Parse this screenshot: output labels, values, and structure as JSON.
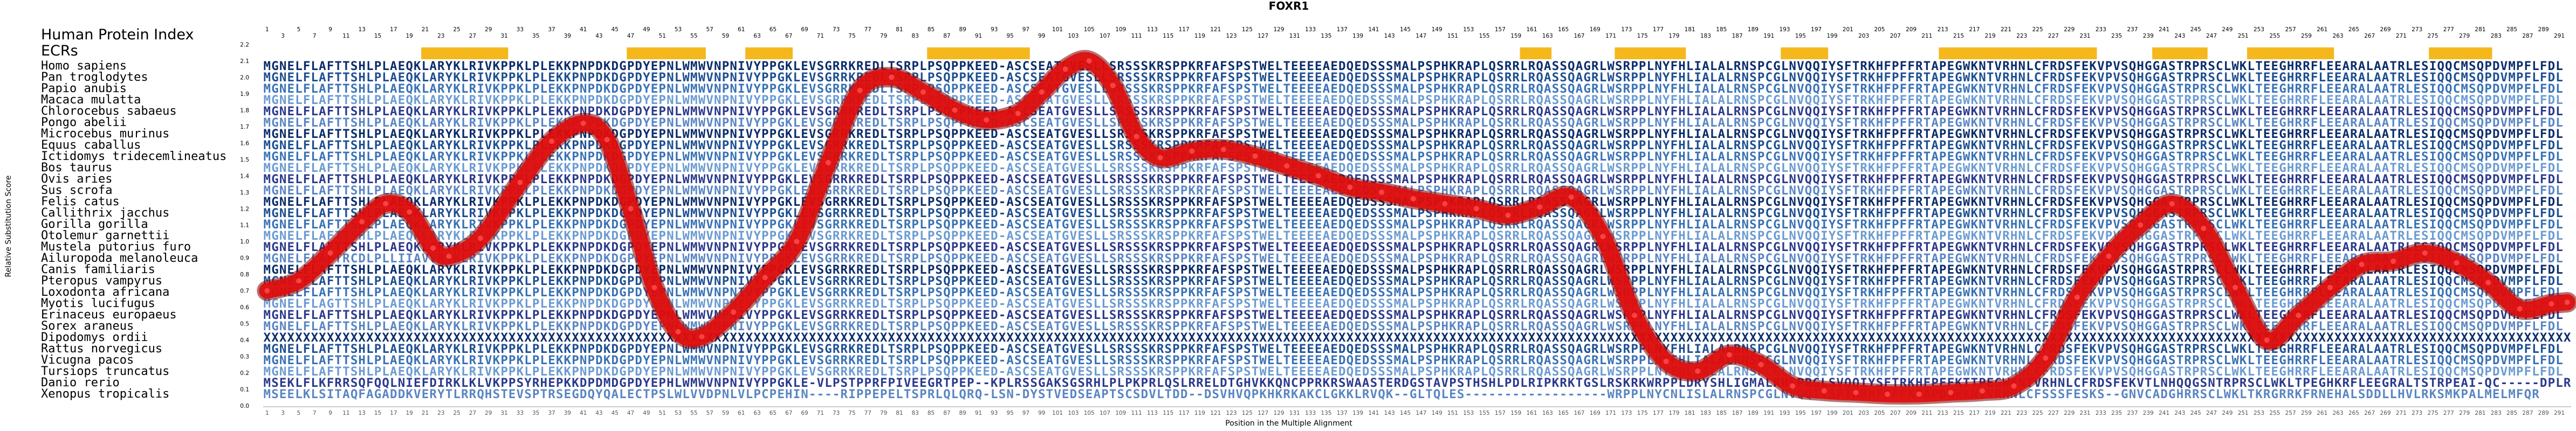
{
  "chart_data": {
    "type": "line",
    "title": "FOXR1",
    "xlabel": "Position in the Multiple Alignment",
    "ylabel": "Relative Substitution Score",
    "yticks": [
      "0.0",
      "0.1",
      "0.2",
      "0.3",
      "0.4",
      "0.5",
      "0.6",
      "0.7",
      "0.8",
      "0.9",
      "1.0",
      "1.1",
      "1.2",
      "1.3",
      "1.4",
      "1.5",
      "1.6",
      "1.7",
      "1.8",
      "1.9",
      "2.0",
      "2.1",
      "2.2"
    ],
    "xlim": [
      1,
      292
    ],
    "ylim": [
      0,
      2.3
    ],
    "grid": false,
    "header_rows": [
      "Human Protein Index",
      "ECRs"
    ],
    "ecr_ranges": [
      [
        21,
        31
      ],
      [
        47,
        56
      ],
      [
        62,
        67
      ],
      [
        85,
        97
      ],
      [
        160,
        163
      ],
      [
        172,
        180
      ],
      [
        193,
        198
      ],
      [
        213,
        232
      ],
      [
        240,
        246
      ],
      [
        252,
        262
      ],
      [
        275,
        282
      ]
    ],
    "index_positions_start": 1,
    "index_positions_end": 292,
    "index_positions_step": 2,
    "species": [
      "Homo sapiens",
      "Pan troglodytes",
      "Papio anubis",
      "Macaca mulatta",
      "Chlorocebus sabaeus",
      "Pongo abelii",
      "Microcebus murinus",
      "Equus caballus",
      "Ictidomys tridecemlineatus",
      "Bos taurus",
      "Ovis aries",
      "Sus scrofa",
      "Felis catus",
      "Callithrix jacchus",
      "Gorilla gorilla",
      "Otolemur garnettii",
      "Mustela putorius furo",
      "Ailuropoda melanoleuca",
      "Canis familiaris",
      "Pteropus vampyrus",
      "Loxodonta africana",
      "Myotis lucifugus",
      "Erinaceus europaeus",
      "Sorex araneus",
      "Dipodomys ordii",
      "Rattus norvegicus",
      "Vicugna pacos",
      "Tursiops truncatus",
      "Danio rerio",
      "Xenopus tropicalis"
    ],
    "sequences": [
      "MGNELFLAFTTSHLPLAEQKLARYKLRIVKPPKLPLEKKPNPDKDGPDYEPNLWMWVNPNIVYPPGKLEVSGRRKREDLTSRPLPSQPPKEED-ASCSEATGVESLLSRSSSKRSPPKRFAFSPSTWELTEEEEAEDQEDSSSMALPSPHKRAPLQSRRLRQASSQAGRLWSRPPLNYFHLIALALRNSPCGLNVQQIYSFTRKHFPFFRTAPEGWKNTVRHNLCFRDSFEKVPVSQHGGASTRPRSCLWKLTEEGHRRFLEEARALAATRLESIQQCMSQPDVMPFLFDL",
      "MGNELFLAFTTSHLPLAEQKLARYKLRIVKPPKLPLEKKPNPDKDGPDYEPNLWMWVNPNIVYPPGKLEVSGRRKREDLTSRPLPSQPPKEED-ASCSEATGVESLLSRSSSKRSPPKRFAFSPSTWELTEEEEAEDQEDSSSMALPSPHKRAPLQSRRLRQASSQAGRLWSRPPLNYFHLIALALRNSPCGLNVQQIYSFTRKHFPFFRTAPEGWKNTVRHNLCFRDSFEKVPVSQHGGASTRPRSCLWKLTEEGHRRFLEEARALAATRLESIQQCMSQPDVMPFLFDL",
      "MGNELFLAFTTSHLPLAEQKLARYKLRIVKPPKLPLEKKPNPDKDGPDYEPNLWMWVNPNIVYPPGKLEVSGRRKREDLTSRPLPSQPPKEED-ASCSEATGVESLLSRSSSKRSPPKRFAFSPSTWELTEEEEAEDQEDSSSMALPSPHKRAPLQSRRLRQASSQAGRLWSRPPLNYFHLIALALRNSPCGLNVQQIYSFTRKHFPFFRTAPEGWKNTVRHNLCFRDSFEKVPVSQHGGASTRPRSCLWKLTEEGHRRFLEEARALAATRLESIQQCMSQPDVMPFLFDL",
      "MGNELFLAFTTSHLPLAEQKLARYKLRIVKPPKLPLEKKPNPDKDGPDYEPNLWMWVNPNIVYPPGKLEVSGRRKREDLTSRPLPSQPPKEED-ASCSEATGVESLLSRSSSKRSPPKRFAFSPSTWELTEEEEAEDQEDSSSMALPSPHKRAPLQSRRLRQASSQAGRLWSRPPLNYFHLIALALRNSPCGLNVQQIYSFTRKHFPFFRTAPEGWKNTVRHNLCFRDSFEKVPVSQHGGASTRPRSCLWKLTEEGHRRFLEEARALAATRLESIQQCMSQPDVMPFLFDL",
      "MGNELFLAFTTSHLPLAEQKLARYKLRIVKPPKLPLEKKPNPDKDGPDYEPNLWMWVNPNIVYPPGKLEVSGRRKREDLTSRPLPSQPPKEED-ASCSEATGVESLLSRSSSKRSPPKRFAFSPSTWELTEEEEAEDQEDSSSMALPSPHKRAPLQSRRLRQASSQAGRLWSRPPLNYFHLIALALRNSPCGLNVQQIYSFTRKHFPFFRTAPEGWKNTVRHNLCFRDSFEKVPVSQHGGASTRPRSCLWKLTEEGHRRFLEEARALAATRLESIQQCMSQPDVMPFLFDL",
      "MGNELFLAFTTSHLPLAEQKLARYKLRIVKPPKLPLEKKPNPDKDGPDYEPNLWMWVNPNIVYPPGKLEVSGRRKREDLTSRPLPSQPPKEED-ASCSEATGVESLLSRSSSKRSPPKRFAFSPSTWELTEEEEAEDQEDSSSMALPSPHKRAPLQSRRLRQASSQAGRLWSRPPLNYFHLIALALRNSPCGLNVQQIYSFTRKHFPFFRTAPEGWKNTVRHNLCFRDSFEKVPVSQHGGASTRPRSCLWKLTEEGHRRFLEEARALAATRLESIQQCMSQPDVMPFLFDL",
      "MGNELFLAFTTSHLPLAEQKLARYKLRIVKPPKLPLEKKPNPDKDGPDYEPNLWMWVNPNIVYPPGKLEVSGRRKREDLTSRPLPSQPPKEED-ASCSEATGVESLLSRSSSKRSPPKRFAFSPSTWELTEEEEAEDQEDSSSMALPSPHKRAPLQSRRLRQASSQAGRLWSRPPLNYFHLIALALRNSPCGLNVQQIYSFTRKHFPFFRTAPEGWKNTVRHNLCFRDSFEKVPVSQHGGASTRPRSCLWKLTEEGHRRFLEEARALAATRLESIQQCMSQPDVMPFLFDL",
      "MGNELFLAFTTSHLPLAEQKLARYKLRIVKPPKLPLEKKPNPDKDGPDYEPNLWMWVNPNIVYPPGKLEVSGRRKREDLTSRPLPSQPPKEED-ASCSEATGVESLLSRSSSKRSPPKRFAFSPSTWELTEEEEAEDQEDSSSMALPSPHKRAPLQSRRLRQASSQAGRLWSRPPLNYFHLIALALRNSPCGLNVQQIYSFTRKHFPFFRTAPEGWKNTVRHNLCFRDSFEKVPVSQHGGASTRPRSCLWKLTEEGHRRFLEEARALAATRLESIQQCMSQPDVMPFLFDL",
      "MGNELFLAFTTSHLPLAEQKLARYKLRIVKPPKLPLEKKPNPDKDGPDYEPNLWMWVNPNIVYPPGKLEVSGRRKREDLTSRPLPSQPPKEED-ASCSEATGVESLLSRSSSKRSPPKRFAFSPSTWELTEEEEAEDQEDSSSMALPSPHKRAPLQSRRLRQASSQAGRLWSRPPLNYFHLIALALRNSPCGLNVQQIYSFTRKHFPFFRTAPEGWKNTVRHNLCFRDSFEKVPVSQHGGASTRPRSCLWKLTEEGHRRFLEEARALAATRLESIQQCMSQPDVMPFLFDL",
      "MGNELFLAFTTSHLPLAEQKLARYKLRIVKPPKLPLEKKPNPDKDGPDYEPNLWMWVNPNIVYPPGKLEVSGRRKREDLTSRPLPSQPPKEED-ASCSEATGVESLLSRSSSKRSPPKRFAFSPSTWELTEEEEAEDQEDSSSMALPSPHKRAPLQSRRLRQASSQAGRLWSRPPLNYFHLIALALRNSPCGLNVQQIYSFTRKHFPFFRTAPEGWKNTVRHNLCFRDSFEKVPVSQHGGASTRPRSCLWKLTEEGHRRFLEEARALAATRLESIQQCMSQPDVMPFLFDL",
      "MGNELFLAFTTSHLPLAEQKLARYKLRIVKPPKLPLEKKPNPDKDGPDYEPNLWMWVNPNIVYPPGKLEVSGRRKREDLTSRPLPSQPPKEED-ASCSEATGVESLLSRSSSKRSPPKRFAFSPSTWELTEEEEAEDQEDSSSMALPSPHKRAPLQSRRLRQASSQAGRLWSRPPLNYFHLIALALRNSPCGLNVQQIYSFTRKHFPFFRTAPEGWKNTVRHNLCFRDSFEKVPVSQHGGASTRPRSCLWKLTEEGHRRFLEEARALAATRLESIQQCMSQPDVMPFLFDL",
      "MGNELFLAFTTSHLPLAEQKLARYKLRIVKPPKLPLEKKPNPDKDGPDYEPNLWMWVNPNIVYPPGKLEVSGRRKREDLTSRPLPSQPPKEED-ASCSEATGVESLLSRSSSKRSPPKRFAFSPSTWELTEEEEAEDQEDSSSMALPSPHKRAPLQSRRLRQASSQAGRLWSRPPLNYFHLIALALRNSPCGLNVQQIYSFTRKHFPFFRTAPEGWKNTVRHNLCFRDSFEKVPVSQHGGASTRPRSCLWKLTEEGHRRFLEEARALAATRLESIQQCMSQPDVMPFLFDL",
      "MGNELFLAFTTSHLPLAEQKLARYKLRIVKPPKLPLEKKPNPDKDGPDYEPNLWMWVNPNIVYPPGKLEVSGRRKREDLTSRPLPSQPPKEED-ASCSEATGVESLLSRSSSKRSPPKRFAFSPSTWELTEEEEAEDQEDSSSMALPSPHKRAPLQSRRLRQASSQAGRLWSRPPLNYFHLIALALRNSPCGLNVQQIYSFTRKHFPFFRTAPEGWKNTVRHNLCFRDSFEKVPVSQHGGASTRPRSCLWKLTEEGHRRFLEEARALAATRLESIQQCMSQPDVMPFLFDL",
      "MGNELFLAFTTSHLPLAEQKLARYKLRIVKPPKLPLEKKPNPDKDGPDYEPNLWMWVNPNIVYPPGKLEVSGRRKREDLTSRPLPSQPPKEED-ASCSEATGVESLLSRSSSKRSPPKRFAFSPSTWELTEEEEAEDQEDSSSMALPSPHKRAPLQSRRLRQASSQAGRLWSRPPLNYFHLIALALRNSPCGLNVQQIYSFTRKHFPFFRTAPEGWKNTVRHNLCFRDSFEKVPVSQHGGASTRPRSCLWKLTEEGHRRFLEEARALAATRLESIQQCMSQPDVMPFLFDL",
      "MGNELFLAFTTSHLPLAEQKLARYKLRIVKPPKLPLEKKPNPDKDGPDYEPNLWMWVNPNIVYPPGKLEVSGRRKREDLTSRPLPSQPPKEED-ASCSEATGVESLLSRSSSKRSPPKRFAFSPSTWELTEEEEAEDQEDSSSMALPSPHKRAPLQSRRLRQASSQAGRLWSRPPLNYFHLIALALRNSPCGLNVQQIYSFTRKHFPFFRTAPEGWKNTVRHNLCFRDSFEKVPVSQHGGASTRPRSCLWKLTEEGHRRFLEEARALAATRLESIQQCMSQPDVMPFLFDL",
      "MGNELFLAFTTSHLPLAEQKLARYKLRIVKPPKLPLEKKPNPDKDGPDYEPNLWMWVNPNIVYPPGKLEVSGRRKREDLTSRPLPSQPPKEED-ASCSEATGVESLLSRSSSKRSPPKRFAFSPSTWELTEEEEAEDQEDSSSMALPSPHKRAPLQSRRLRQASSQAGRLWSRPPLNYFHLIALALRNSPCGLNVQQIYSFTRKHFPFFRTAPEGWKNTVRHNLCFRDSFEKVPVSQHGGASTRPRSCLWKLTEEGHRRFLEEARALAATRLESIQQCMSQPDVMPFLFDL",
      "MGNELFLAFTTSHLPLAEQKLARYKLRIVKPPKLPLEKKPNPDKDGPDYEPNLWMWVNPNIVYPPGKLEVSGRRKREDLTSRPLPSQPPKEED-ASCSEATGVESLLSRSSSKRSPPKRFAFSPSTWELTEEEEAEDQEDSSSMALPSPHKRAPLQSRRLRQASSQAGRLWSRPPLNYFHLIALALRNSPCGLNVQQIYSFTRKHFPFFRTAPEGWKNTVRHNLCFRDSFEKVPVSQHGGASTRPRSCLWKLTEEGHRRFLEEARALAATRLESIQQCMSQPDVMPFLFDL",
      "MGNELFLAFTRCDLPLLIIAVVRYKLRIVKPPKLPLEKKPNPDKDGPDYEPNLWMWVNPNIVYPPGKLEVSGRRKREDLTSRPLPSQPPKEED-ASCSEATGVESLLSRSSSKRSPPKRFAFSPSTWELTEEEEAEDQEDSSSMALPSPHKRAPLQSRRLRQASSQAGRLWSRPPLNYFHLIALALRNSPCGLNVQQIYSFTRKHFPFFRTAPEGWKNTVRHNLCFRDSFEKVPVSQHGGASTRPRSCLWKLTEEGHRRFLEEARALAATRLESIQQCMSQPDVMPFLFDL",
      "MGNELFLAFTTSHLPLAEQKLARYKLRIVKPPKLPLEKKPNPDKDGPDYEPNLWMWVNPNIVYPPGKLEVSGRRKREDLTSRPLPSQPPKEED-ASCSEATGVESLLSRSSSKRSPPKRFAFSPSTWELTEEEEAEDQEDSSSMALPSPHKRAPLQSRRLRQASSQAGRLWSRPPLNYFHLIALALRNSPCGLNVQQIYSFTRKHFPFFRTAPEGWKNTVRHNLCFRDSFEKVPVSQHGGASTRPRSCLWKLTEEGHRRFLEEARALAATRLESIQQCMSQPDVMPFLFDL",
      "MGNELFLAFTTSHLPLAEQKLARYKLRIVKPPKLPLEKKPNPDKDGPDYEPNLWMWVNPNIVYPPGKLEVSGRRKREDLTSRPLPSQPPKEED-ASCSEATGVESLLSRSSSKRSPPKRFAFSPSTWELTEEEEAEDQEDSSSMALPSPHKRAPLQSRRLRQASSQAGRLWSRPPLNYFHLIALALRNSPCGLNVQQIYSFTRKHFPFFRTAPEGWKNTVRHNLCFRDSFEKVPVSQHGGASTRPRSCLWKLTEEGHRRFLEEARALAATRLESIQQCMSQPDVMPFLFDL",
      "MGNELFLAFTTSHLPLAEQKLARYKLRIVKPPKLPLEKKPNPDKDGPDYEPNLWMWVNPNIVYPPGKLEVSGRRKREDLTSRPLPSQPPKEED-ASCSEATGVESLLSRSSSKRSPPKRFAFSPSTWELTEEEEAEDQEDSSSMALPSPHKRAPLQSRRLRQASSQAGRLWSRPPLNYFHLIALALRNSPCGLNVQQIYSFTRKHFPFFRTAPEGWKNTVRHNLCFRDSFEKVPVSQHGGASTRPRSCLWKLTEEGHRRFLEEARALAATRLESIQQCMSQPDVMPFLFDL",
      "MGNELFLAGTTSHLPLAEQKLARYKLRIVKPPKLPLEKKPNPDKDGPDYEPNLWMWVNPNIVYPPGKLEVSGRRKREDLTSRPLPSQPPKEED-ASCSEATGVESLLSRSSSKRSPPKRFAFSPSTWELTEEEEAEDQEDSSSMALPSPHKRAPLQSRRLRQASSQAGRLWSRPPLNYFHLIALALRNSPCGLNVQQIYSFTRKHFPFFRTAPEGWKNTVRHNLCFRDSFEKVPVSQHGGASTRPRSCLWKLTEEGHRRFLEEARALAATRLESIQQCMSQPDVMPFLFDL",
      "MGNELFLAFTTSHLPLAEQKLARYKLRIVKPPKLPLEKKPNPDKDGPDYEPNLWMWVNPNIVYPPGKLEVSGRRKREDLTSRPLPSQPPKEED-ASCSEATGVESLLSRSSSKRSPPKRFAFSPSTWELTEEEEAEDQEDSSSMALPSPHKRAPLQSRRLRQASSQAGRLWSRPPLNYFHLIALALRNSPCGLNVQQIYSFTRKHFPFFRTAPEGWKNTVRHNLCFRDSFEKVPVSQHGGASTRPRSCLWKLTEEGHRRFLEEARALAATRLESIQQCMSQPDVMPFLFDL",
      "MGNELFLAFTTSHLPLAEQKLARYKLRIVKPPKLPLEKKPNPDKDGPDYEPNLWMWVNPNIVYPPGKLEVSGRRKREDLTSRPLPSQPPKEED-ASCSEATGVESLLSRSSSKRSPPKRFAFSPSTWELTEEEEAEDQEDSSSMALPSPHKRAPLQSRRLRQASSQAGRLWSRPPLNYFHLIALALRNSPCGLNVQQIYSFTRKHFPFFRTAPEGWKNTVRHNLCFRDSFEKVPVSQHGGASTRPRSCLWKLTEEGHRRFLEEARALAATRLESIQQCMSQPDVMPFLFDL",
      "XXXXXXXXXXXXXXXXXXXXXXXXXXXXXXXXXXXXXXXXXXXXXXXXXXXXXXXXXXXXXXXXXXXXXXXXXXXXXXXXXXXXXXXXXXXXXXXXXXXXXXXXXXXXXXXXXXXXXXXXXXXXXXXXXXXXXXXXXXXXXXXXXXXXXXXXXXXXXXXXXXXXXXXXXXXXXXXXXXXXXXXXXXXXXXXXXXXXXXXXXXXXXXXXXXXXXXXXXXXXXXXXXXXXXXXXXXXXXXXXXXXXXXXXXXXXXXXXXXXXXXXXXXXXXXXXXXXXXXXXXXXXXXXXXXXXXXXXX",
      "MGNELFLAFTTSHLPLAEQKLARYKLRIVKPPKLPLEKKPNPDKDGPDYEPNLWMWVNPNIVYPPGKLEVSGRRKREDLTSRPLPSQPPKEED-ASCSEATGVESLLSRSSSKRSPPKRFAFSPSTWELTEEEEAEDQEDSSSMALPSPHKRAPLQSRRLRQASSQAGRLWSRPPLNYFHLIALALRNSPCGLNVQQIYSFTRKHFPFFRTAPEGWKNTVRHNLCFRDSFEKVPVSQHGGASTRPRSCLWKLTEEGHRRFLEEARALAATRLESIQQCMSQPDVMPFLFDL",
      "MGNELFLAFTTSHLPLAEQKLARYKLRIVKPPKLPLEKKPNPDKDGPDYEPNLWMWVNPNIVYPPGKLEVSGRRKREDLTSRPLPSQPPKEED-ASCSEATGVESLLSRSSSKRSPPKRFAFSPSTWELTEEEEAEDQEDSSSMALPSPHKRAPLQSRRLRQASSQAGRLWSRPPLNYFHLIALALRNSPCGLNVQQIYSFTRKHFPFFRTAPEGWKNTVRHNLCFRDSFEKVPVSQHGGASTRPRSCLWKLTEEGHRRFLEEARALAATRLESIQQCMSQPDVMPFLFDL",
      "MGNELFLAFTTSHLPLAEQKLARYKLRIVKPPKLPLEKKPNPDKDGPDYEPNLWMWVNPNIVYPPGKLEVSGRRKREDLTSRPLPSQPPKEED-ASCSEATGVESLLSRSSSKRSPPKRFAFSPSTWELTEEEEAEDQEDSSSMALPSPHKRAPLQSRRLRQASSQAGRLWSRPPLNYFHLIALALRNSPCGLNVQQIYSFTRKHFPFFRTAPEGWKNTVRHNLCFRDSFEKVPVSQHGGASTRPRSCLWKLTEEGHRRFLEEARALAATRLESIQQCMSQPDVMPFLFDL",
      "MSEKLFLKFRRSQFQQLNIEFDIRKLKLVKPPSYRHEPKKDPDMDGPDYEPHLWMWVNPNIVYPPGKLE-VLPSTPPRFPIVEEGRTPEP--KPLRSSGAKSGSRHLPLPKPRLQSLRRELDTGHVKKQNCPPRKRSWAASTERDGSTAVPSTHSHLPDLRIPKRKTGSLRSKRKWRPPLDRYSHLIGMALRHSPRGLSVQQIYSFTRKHFPFFKTTPEGWKNTVRHNLCFRDSFEKVTLNHQQGSNTRPRSCLWKLTPEGHKRFLEEGRALTSTRPEAI-QC-----DPLRRPAPL",
      "MSEELKLSITAQFAGADDKVERYTLRRQHSTEVSPTRSEGDQYQALECTPSLWLVVDPNLVLPCPEHIN----RIPPEPELTSPRLQLQRQ-LSN-DYSTVEDSEAPTSCSDVLTDD--DSVHVQPKHKRKAKCLGKKLRVQK--GLTQLES------------------WRPPLNYCNLISLALRNSPCGLNVQQIYSFTRRHFPFFKTAPDGWKNTVRHNLCFSSSFESKS--GNVCADGHRRSCLWKLTKRGRRKFRNEHALSDDLLHVLRKSMKPALMELMFQR"
    ],
    "score_curve": {
      "x": [
        1,
        5,
        9,
        13,
        16,
        19,
        22,
        24,
        28,
        33,
        37,
        41,
        44,
        47,
        50,
        53,
        56,
        60,
        64,
        68,
        72,
        76,
        80,
        84,
        88,
        92,
        96,
        99,
        102,
        105,
        108,
        111,
        114,
        118,
        122,
        126,
        130,
        134,
        138,
        142,
        146,
        150,
        154,
        158,
        162,
        166,
        170,
        174,
        178,
        182,
        186,
        190,
        194,
        198,
        202,
        206,
        210,
        214,
        218,
        222,
        226,
        230,
        234,
        238,
        242,
        246,
        250,
        254,
        258,
        262,
        266,
        270,
        274,
        278,
        282,
        286,
        290,
        292
      ],
      "y": [
        0.7,
        0.76,
        0.93,
        1.12,
        1.23,
        1.18,
        0.96,
        0.91,
        1.02,
        1.36,
        1.61,
        1.72,
        1.62,
        1.2,
        0.72,
        0.45,
        0.42,
        0.57,
        0.78,
        1.0,
        1.48,
        1.92,
        2.0,
        1.91,
        1.8,
        1.74,
        1.78,
        1.91,
        2.05,
        2.1,
        1.95,
        1.64,
        1.51,
        1.55,
        1.56,
        1.52,
        1.46,
        1.4,
        1.33,
        1.3,
        1.26,
        1.23,
        1.2,
        1.16,
        1.21,
        1.27,
        1.03,
        0.55,
        0.27,
        0.21,
        0.31,
        0.25,
        0.12,
        0.09,
        0.08,
        0.07,
        0.07,
        0.08,
        0.09,
        0.12,
        0.29,
        0.66,
        0.91,
        1.1,
        1.23,
        1.08,
        0.72,
        0.4,
        0.55,
        0.72,
        0.86,
        0.88,
        0.93,
        0.87,
        0.75,
        0.59,
        0.62,
        0.63
      ]
    }
  }
}
